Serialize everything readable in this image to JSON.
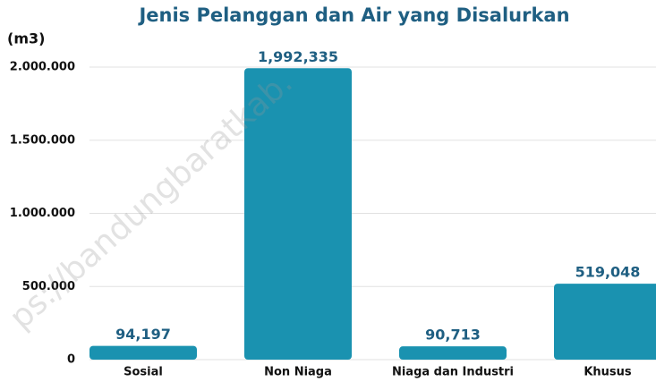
{
  "chart_data": {
    "type": "bar",
    "title": "Jenis Pelanggan dan Air yang Disalurkan",
    "y_label": "(m3)",
    "watermark": "ps://bandungbaratkab.",
    "categories": [
      "Sosial",
      "Non Niaga",
      "Niaga dan Industri",
      "Khusus"
    ],
    "values": [
      94197,
      1992335,
      90713,
      519048
    ],
    "value_labels": [
      "94,197",
      "1,992,335",
      "90,713",
      "519,048"
    ],
    "color": "#1a92b0",
    "ylim": [
      0,
      2000000
    ],
    "yticks": [
      0,
      {
        "value": 500000,
        "label": "500.000"
      },
      {
        "value": 1000000,
        "label": "1.000.000"
      },
      {
        "value": 1500000,
        "label": "1.500.000"
      },
      {
        "value": 2000000,
        "label": "2.000.000"
      }
    ],
    "grid": true
  }
}
